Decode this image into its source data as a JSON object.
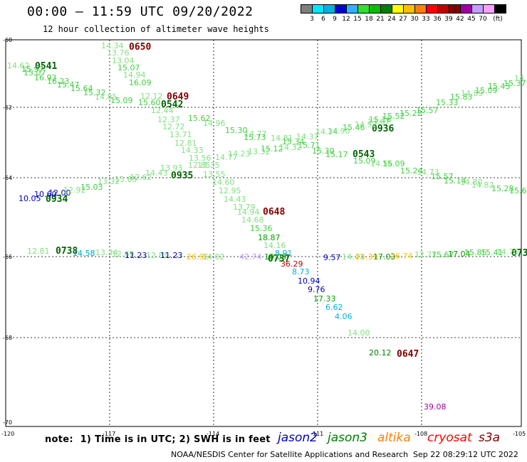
{
  "header": {
    "title": "00:00 – 11:59 UTC 09/20/2022",
    "subtitle": "12 hour collection of altimeter wave heights"
  },
  "colorbar": {
    "unit": "(ft)",
    "ticks": [
      "3",
      "6",
      "9",
      "12",
      "15",
      "18",
      "21",
      "24",
      "27",
      "30",
      "33",
      "36",
      "39",
      "42",
      "45",
      "70"
    ],
    "colors": [
      "#7f7f7f",
      "#00e5ff",
      "#00b0e0",
      "#0000d0",
      "#30b0ff",
      "#30e030",
      "#00c000",
      "#008000",
      "#ffff00",
      "#ffc000",
      "#ff8000",
      "#ff0000",
      "#c00000",
      "#800000",
      "#a000a0",
      "#c0a0ff",
      "#ffa0ff",
      "#000000"
    ]
  },
  "map": {
    "lat_labels": [
      "-60",
      "-62",
      "-64",
      "-66",
      "-68",
      "-70"
    ],
    "lon_labels": [
      "-120",
      "-117",
      "-114",
      "-111",
      "-108",
      "-105"
    ],
    "pass_labels": [
      {
        "text": "0650",
        "color": "#800000"
      },
      {
        "text": "0541",
        "color": "#006400"
      },
      {
        "text": "0649",
        "color": "#800000"
      },
      {
        "text": "0542",
        "color": "#006400"
      },
      {
        "text": "0936",
        "color": "#006400"
      },
      {
        "text": "0543",
        "color": "#006400"
      },
      {
        "text": "0935",
        "color": "#006400"
      },
      {
        "text": "0934",
        "color": "#006400"
      },
      {
        "text": "0648",
        "color": "#800000"
      },
      {
        "text": "0738",
        "color": "#006400"
      },
      {
        "text": "0737",
        "color": "#006400"
      },
      {
        "text": "0647",
        "color": "#800000"
      },
      {
        "text": "0739",
        "color": "#006400"
      }
    ],
    "wave_values": [
      {
        "text": "14.62",
        "color": "#80e080"
      },
      {
        "text": "15.97",
        "color": "#40d040"
      },
      {
        "text": "15.07",
        "color": "#40d040"
      },
      {
        "text": "16.93",
        "color": "#40d040"
      },
      {
        "text": "16.23",
        "color": "#40d040"
      },
      {
        "text": "15.47",
        "color": "#40d040"
      },
      {
        "text": "15.64",
        "color": "#40d040"
      },
      {
        "text": "15.32",
        "color": "#40d040"
      },
      {
        "text": "14.85",
        "color": "#80e080"
      },
      {
        "text": "15.09",
        "color": "#40d040"
      },
      {
        "text": "15.60",
        "color": "#40d040"
      },
      {
        "text": "14.34",
        "color": "#80e080"
      },
      {
        "text": "13.76",
        "color": "#80e080"
      },
      {
        "text": "13.04",
        "color": "#80e080"
      },
      {
        "text": "15.07",
        "color": "#40d040"
      },
      {
        "text": "14.94",
        "color": "#80e080"
      },
      {
        "text": "16.09",
        "color": "#40d040"
      },
      {
        "text": "12.12",
        "color": "#80e080"
      },
      {
        "text": "12.44",
        "color": "#80e080"
      },
      {
        "text": "12.37",
        "color": "#80e080"
      },
      {
        "text": "12.72",
        "color": "#80e080"
      },
      {
        "text": "13.71",
        "color": "#80e080"
      },
      {
        "text": "12.81",
        "color": "#80e080"
      },
      {
        "text": "14.33",
        "color": "#80e080"
      },
      {
        "text": "13.56",
        "color": "#80e080"
      },
      {
        "text": "12.85",
        "color": "#80e080"
      },
      {
        "text": "13.35",
        "color": "#80e080"
      },
      {
        "text": "13.55",
        "color": "#80e080"
      },
      {
        "text": "14.60",
        "color": "#80e080"
      },
      {
        "text": "12.95",
        "color": "#80e080"
      },
      {
        "text": "14.43",
        "color": "#80e080"
      },
      {
        "text": "13.79",
        "color": "#80e080"
      },
      {
        "text": "14.94",
        "color": "#80e080"
      },
      {
        "text": "14.68",
        "color": "#80e080"
      },
      {
        "text": "15.36",
        "color": "#40d040"
      },
      {
        "text": "18.87",
        "color": "#00a000"
      },
      {
        "text": "14.16",
        "color": "#80e080"
      },
      {
        "text": "15.62",
        "color": "#40d040"
      },
      {
        "text": "14.96",
        "color": "#80e080"
      },
      {
        "text": "15.30",
        "color": "#40d040"
      },
      {
        "text": "14.77",
        "color": "#80e080"
      },
      {
        "text": "15.73",
        "color": "#40d040"
      },
      {
        "text": "15.12",
        "color": "#40d040"
      },
      {
        "text": "14.81",
        "color": "#80e080"
      },
      {
        "text": "15.34",
        "color": "#40d040"
      },
      {
        "text": "15.71",
        "color": "#40d040"
      },
      {
        "text": "15.30",
        "color": "#40d040"
      },
      {
        "text": "15.17",
        "color": "#40d040"
      },
      {
        "text": "15.09",
        "color": "#40d040"
      },
      {
        "text": "14.56",
        "color": "#80e080"
      },
      {
        "text": "15.09",
        "color": "#40d040"
      },
      {
        "text": "15.24",
        "color": "#40d040"
      },
      {
        "text": "14.73",
        "color": "#80e080"
      },
      {
        "text": "15.57",
        "color": "#40d040"
      },
      {
        "text": "15.14",
        "color": "#40d040"
      },
      {
        "text": "14.80",
        "color": "#80e080"
      },
      {
        "text": "14.82",
        "color": "#80e080"
      },
      {
        "text": "15.28",
        "color": "#40d040"
      },
      {
        "text": "15.68",
        "color": "#40d040"
      },
      {
        "text": "14.77",
        "color": "#80e080"
      },
      {
        "text": "14.23",
        "color": "#80e080"
      },
      {
        "text": "13.32",
        "color": "#80e080"
      },
      {
        "text": "14.32",
        "color": "#80e080"
      },
      {
        "text": "14.37",
        "color": "#80e080"
      },
      {
        "text": "14.34",
        "color": "#80e080"
      },
      {
        "text": "14.90",
        "color": "#80e080"
      },
      {
        "text": "15.46",
        "color": "#40d040"
      },
      {
        "text": "14.52",
        "color": "#80e080"
      },
      {
        "text": "13.67",
        "color": "#80e080"
      },
      {
        "text": "15.16",
        "color": "#40d040"
      },
      {
        "text": "15.52",
        "color": "#40d040"
      },
      {
        "text": "15.22",
        "color": "#40d040"
      },
      {
        "text": "15.57",
        "color": "#40d040"
      },
      {
        "text": "15.33",
        "color": "#40d040"
      },
      {
        "text": "15.83",
        "color": "#40d040"
      },
      {
        "text": "14.89",
        "color": "#80e080"
      },
      {
        "text": "15.09",
        "color": "#40d040"
      },
      {
        "text": "15.43",
        "color": "#40d040"
      },
      {
        "text": "15.37",
        "color": "#40d040"
      },
      {
        "text": "14.40",
        "color": "#80e080"
      },
      {
        "text": "10.05",
        "color": "#0000c0"
      },
      {
        "text": "10.60",
        "color": "#0000c0"
      },
      {
        "text": "12.00",
        "color": "#0000c0"
      },
      {
        "text": "12.92",
        "color": "#80e080"
      },
      {
        "text": "15.03",
        "color": "#40d040"
      },
      {
        "text": "13.32",
        "color": "#80e080"
      },
      {
        "text": "13.65",
        "color": "#80e080"
      },
      {
        "text": "12.62",
        "color": "#80e080"
      },
      {
        "text": "14.43",
        "color": "#80e080"
      },
      {
        "text": "13.93",
        "color": "#80e080"
      },
      {
        "text": "12.81",
        "color": "#80e080"
      },
      {
        "text": "14.58",
        "color": "#00a0e0"
      },
      {
        "text": "13.34",
        "color": "#80e080"
      },
      {
        "text": "12.69",
        "color": "#80e080"
      },
      {
        "text": "11.23",
        "color": "#0000c0"
      },
      {
        "text": "12.81",
        "color": "#80e080"
      },
      {
        "text": "11.23",
        "color": "#0000c0"
      },
      {
        "text": "26.96",
        "color": "#ffc000"
      },
      {
        "text": "14.02",
        "color": "#80e080"
      },
      {
        "text": "42.74",
        "color": "#c0a0ff"
      },
      {
        "text": "19.09",
        "color": "#00a000"
      },
      {
        "text": "8.91",
        "color": "#00b0e0"
      },
      {
        "text": "36.29",
        "color": "#c00000"
      },
      {
        "text": "8.73",
        "color": "#00b0e0"
      },
      {
        "text": "10.94",
        "color": "#0000c0"
      },
      {
        "text": "9.76",
        "color": "#0000c0"
      },
      {
        "text": "17.33",
        "color": "#00a000"
      },
      {
        "text": "6.62",
        "color": "#00b0e0"
      },
      {
        "text": "4.06",
        "color": "#00b0e0"
      },
      {
        "text": "14.00",
        "color": "#80e080"
      },
      {
        "text": "20.12",
        "color": "#008000"
      },
      {
        "text": "39.08",
        "color": "#a000a0"
      },
      {
        "text": "9.57",
        "color": "#0000c0"
      },
      {
        "text": "14.41",
        "color": "#80e080"
      },
      {
        "text": "24.39",
        "color": "#ffc000"
      },
      {
        "text": "17.03",
        "color": "#00a000"
      },
      {
        "text": "26.74",
        "color": "#ffc000"
      },
      {
        "text": "12.77",
        "color": "#80e080"
      },
      {
        "text": "15.67",
        "color": "#40d040"
      },
      {
        "text": "17.04",
        "color": "#00a000"
      },
      {
        "text": "15.85",
        "color": "#40d040"
      },
      {
        "text": "15.41",
        "color": "#40d040"
      },
      {
        "text": "14.70",
        "color": "#80e080"
      }
    ]
  },
  "footer": {
    "note": "note:  1) Time is in UTC; 2) SWH is in feet",
    "missions": [
      {
        "name": "jason2",
        "color": "#0000c0"
      },
      {
        "name": "jason3",
        "color": "#008000"
      },
      {
        "name": "altika",
        "color": "#ff8000"
      },
      {
        "name": "cryosat",
        "color": "#ff0000"
      },
      {
        "name": "s3a",
        "color": "#800000"
      }
    ],
    "credit": "NOAA/NESDIS Center for Satellite Applications and Research",
    "timestamp": "Sep 22 08:29:12 UTC 2022"
  }
}
